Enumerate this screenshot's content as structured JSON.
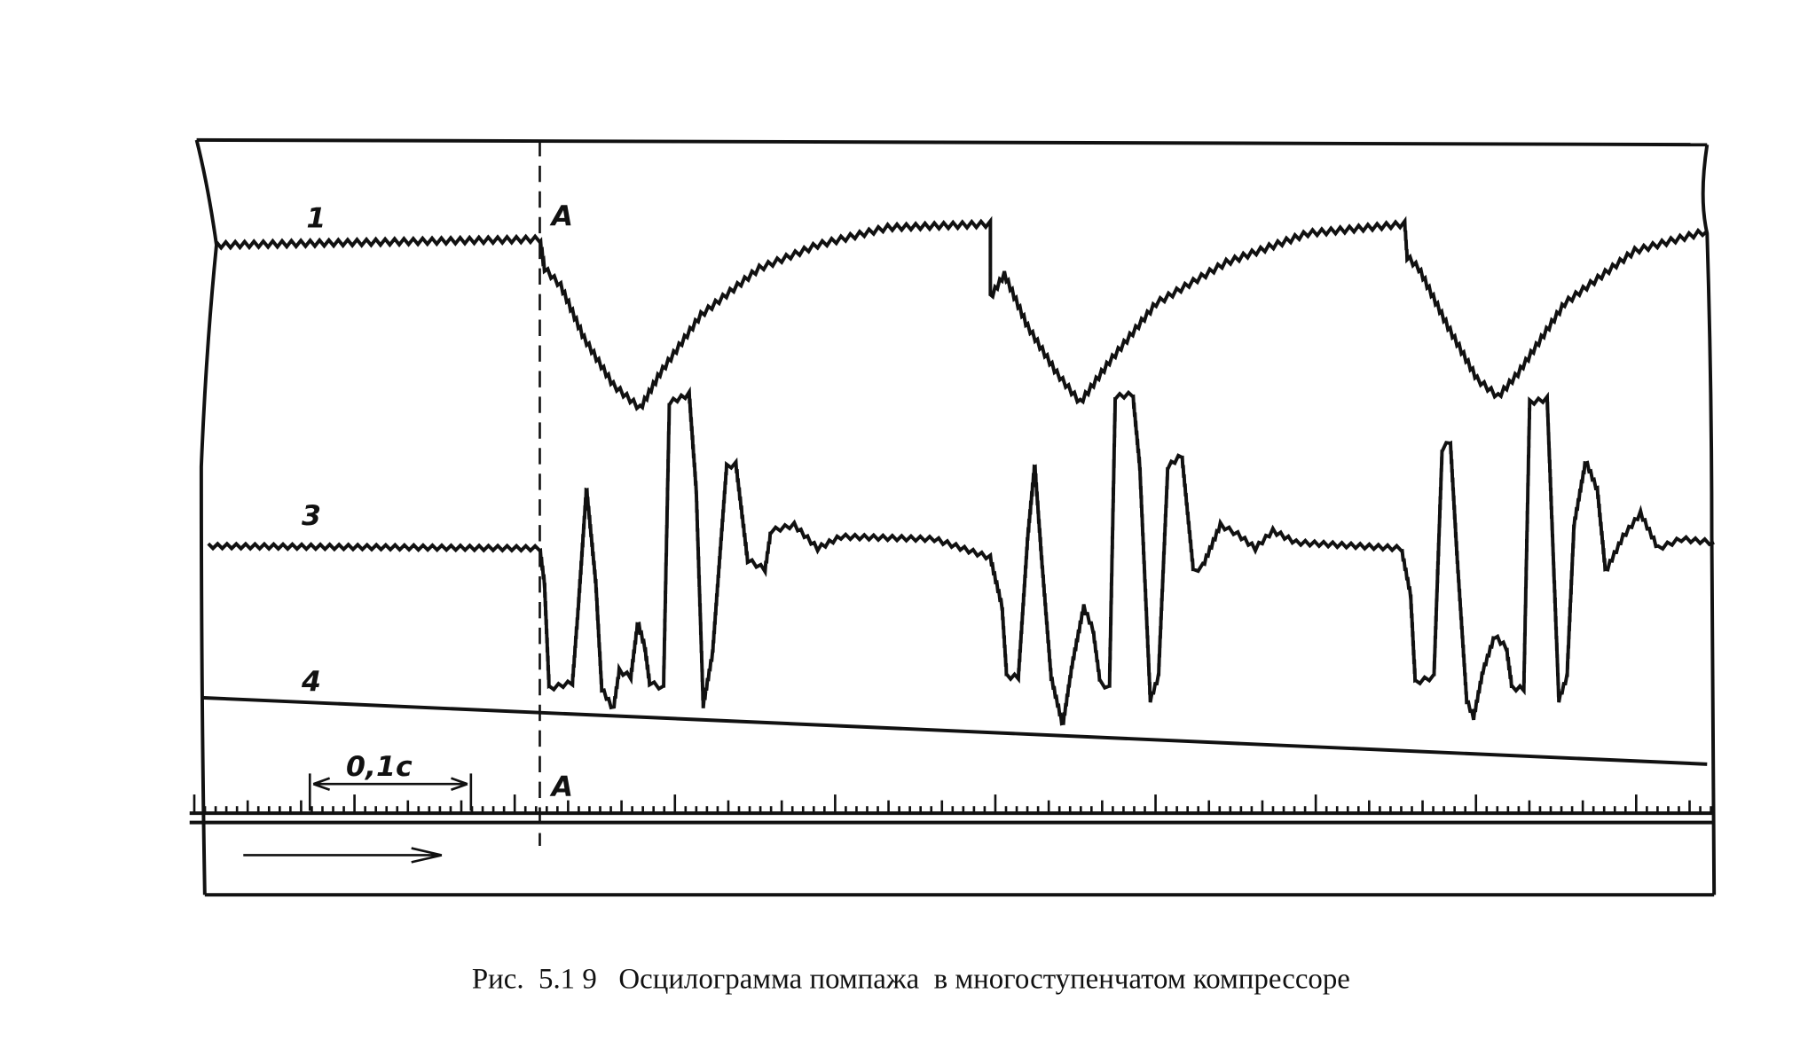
{
  "figure": {
    "trace_labels": [
      "1",
      "3",
      "4"
    ],
    "markers": [
      "A",
      "A"
    ],
    "scale_label": "0,1с",
    "caption": "Рис.  5.1 9   Осцилограмма помпажа  в многоступенчатом компрессоре"
  }
}
